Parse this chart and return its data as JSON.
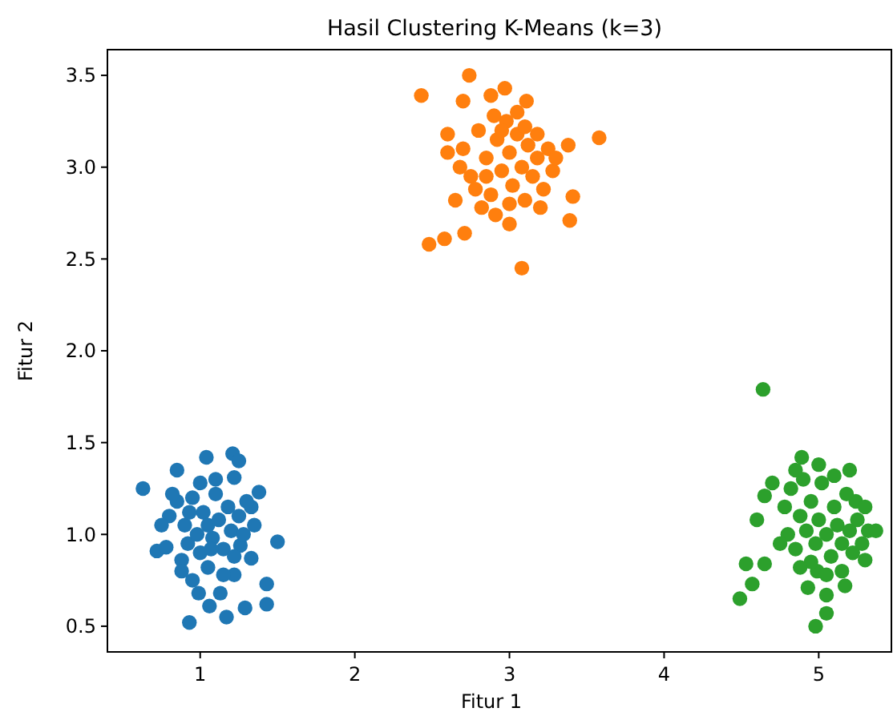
{
  "chart_data": {
    "type": "scatter",
    "title": "Hasil Clustering K-Means (k=3)",
    "xlabel": "Fitur 1",
    "ylabel": "Fitur 2",
    "xlim": [
      0.4,
      5.47
    ],
    "ylim": [
      0.36,
      3.64
    ],
    "xticks": [
      1,
      2,
      3,
      4,
      5
    ],
    "yticks": [
      {
        "value": 0.5,
        "label": "0.5"
      },
      {
        "value": 1,
        "label": "1.0"
      },
      {
        "value": 1.5,
        "label": "1.5"
      },
      {
        "value": 2,
        "label": "2.0"
      },
      {
        "value": 2.5,
        "label": "2.5"
      },
      {
        "value": 3,
        "label": "3.0"
      },
      {
        "value": 3.5,
        "label": "3.5"
      }
    ],
    "grid": false,
    "marker": "circle",
    "series": [
      {
        "color": "#1f77b4",
        "x": [
          0.63,
          1.04,
          1.21,
          1.25,
          1.22,
          0.85,
          1.38,
          1.33,
          1.5,
          1.33,
          1.43,
          1.43,
          1.29,
          1.17,
          0.93,
          1.06,
          0.99,
          1.13,
          0.72,
          0.78,
          1.22,
          1.26,
          0.88,
          0.8,
          0.85,
          0.9,
          0.92,
          0.95,
          0.98,
          1.0,
          1.02,
          1.05,
          1.08,
          1.1,
          1.12,
          1.15,
          1.18,
          1.2,
          1.22,
          1.25,
          1.28,
          0.88,
          0.95,
          1.05,
          1.15,
          1.0,
          1.1,
          0.82,
          0.75,
          1.3,
          1.35,
          0.93,
          1.07
        ],
        "values": [
          1.25,
          1.42,
          1.44,
          1.4,
          1.31,
          1.35,
          1.23,
          1.15,
          0.96,
          0.87,
          0.73,
          0.62,
          0.6,
          0.55,
          0.52,
          0.61,
          0.68,
          0.68,
          0.91,
          0.93,
          0.78,
          0.94,
          0.86,
          1.1,
          1.18,
          1.05,
          0.95,
          1.2,
          1.0,
          0.9,
          1.12,
          1.05,
          0.98,
          1.22,
          1.08,
          0.92,
          1.15,
          1.02,
          0.88,
          1.1,
          1.0,
          0.8,
          0.75,
          0.82,
          0.78,
          1.28,
          1.3,
          1.22,
          1.05,
          1.18,
          1.05,
          1.12,
          0.92
        ]
      },
      {
        "color": "#ff7f0e",
        "x": [
          2.43,
          2.74,
          2.97,
          3.11,
          3.58,
          2.48,
          2.58,
          2.71,
          3.08,
          3.39,
          3.41,
          2.65,
          2.6,
          2.6,
          2.91,
          3.0,
          3.38,
          3.18,
          2.7,
          2.88,
          2.7,
          2.75,
          2.8,
          2.85,
          2.88,
          2.92,
          2.95,
          2.98,
          3.0,
          3.02,
          3.05,
          3.08,
          3.1,
          3.12,
          3.15,
          3.18,
          3.22,
          3.25,
          3.28,
          2.78,
          2.82,
          3.0,
          3.2,
          2.9,
          3.05,
          2.68,
          3.3,
          2.95,
          3.1,
          2.85
        ],
        "values": [
          3.39,
          3.5,
          3.43,
          3.36,
          3.16,
          2.58,
          2.61,
          2.64,
          2.45,
          2.71,
          2.84,
          2.82,
          3.08,
          3.18,
          2.74,
          2.69,
          3.12,
          3.18,
          3.36,
          3.39,
          3.1,
          2.95,
          3.2,
          3.05,
          2.85,
          3.15,
          2.98,
          3.25,
          3.08,
          2.9,
          3.18,
          3.0,
          2.82,
          3.12,
          2.95,
          3.05,
          2.88,
          3.1,
          2.98,
          2.88,
          2.78,
          2.8,
          2.78,
          3.28,
          3.3,
          3.0,
          3.05,
          3.2,
          3.22,
          2.95
        ]
      },
      {
        "color": "#2ca02c",
        "x": [
          4.64,
          4.49,
          4.57,
          4.53,
          4.65,
          4.98,
          5.05,
          5.05,
          4.93,
          5.17,
          5.32,
          5.37,
          4.89,
          5.2,
          4.65,
          4.6,
          5.24,
          5.3,
          4.7,
          4.99,
          4.78,
          4.8,
          4.82,
          4.85,
          4.88,
          4.9,
          4.92,
          4.95,
          4.98,
          5.0,
          5.02,
          5.05,
          5.08,
          5.1,
          5.12,
          5.15,
          5.18,
          5.2,
          5.22,
          5.25,
          4.85,
          5.0,
          5.05,
          5.15,
          4.75,
          4.95,
          5.28,
          5.1,
          4.88,
          5.3
        ],
        "values": [
          1.79,
          0.65,
          0.73,
          0.84,
          0.84,
          0.5,
          0.57,
          0.67,
          0.71,
          0.72,
          1.02,
          1.02,
          1.42,
          1.35,
          1.21,
          1.08,
          1.18,
          0.86,
          1.28,
          0.8,
          1.15,
          1.0,
          1.25,
          0.92,
          1.1,
          1.3,
          1.02,
          1.18,
          0.95,
          1.08,
          1.28,
          1.0,
          0.88,
          1.15,
          1.05,
          0.95,
          1.22,
          1.02,
          0.9,
          1.08,
          1.35,
          1.38,
          0.78,
          0.8,
          0.95,
          0.85,
          0.95,
          1.32,
          0.82,
          1.15
        ]
      }
    ]
  }
}
